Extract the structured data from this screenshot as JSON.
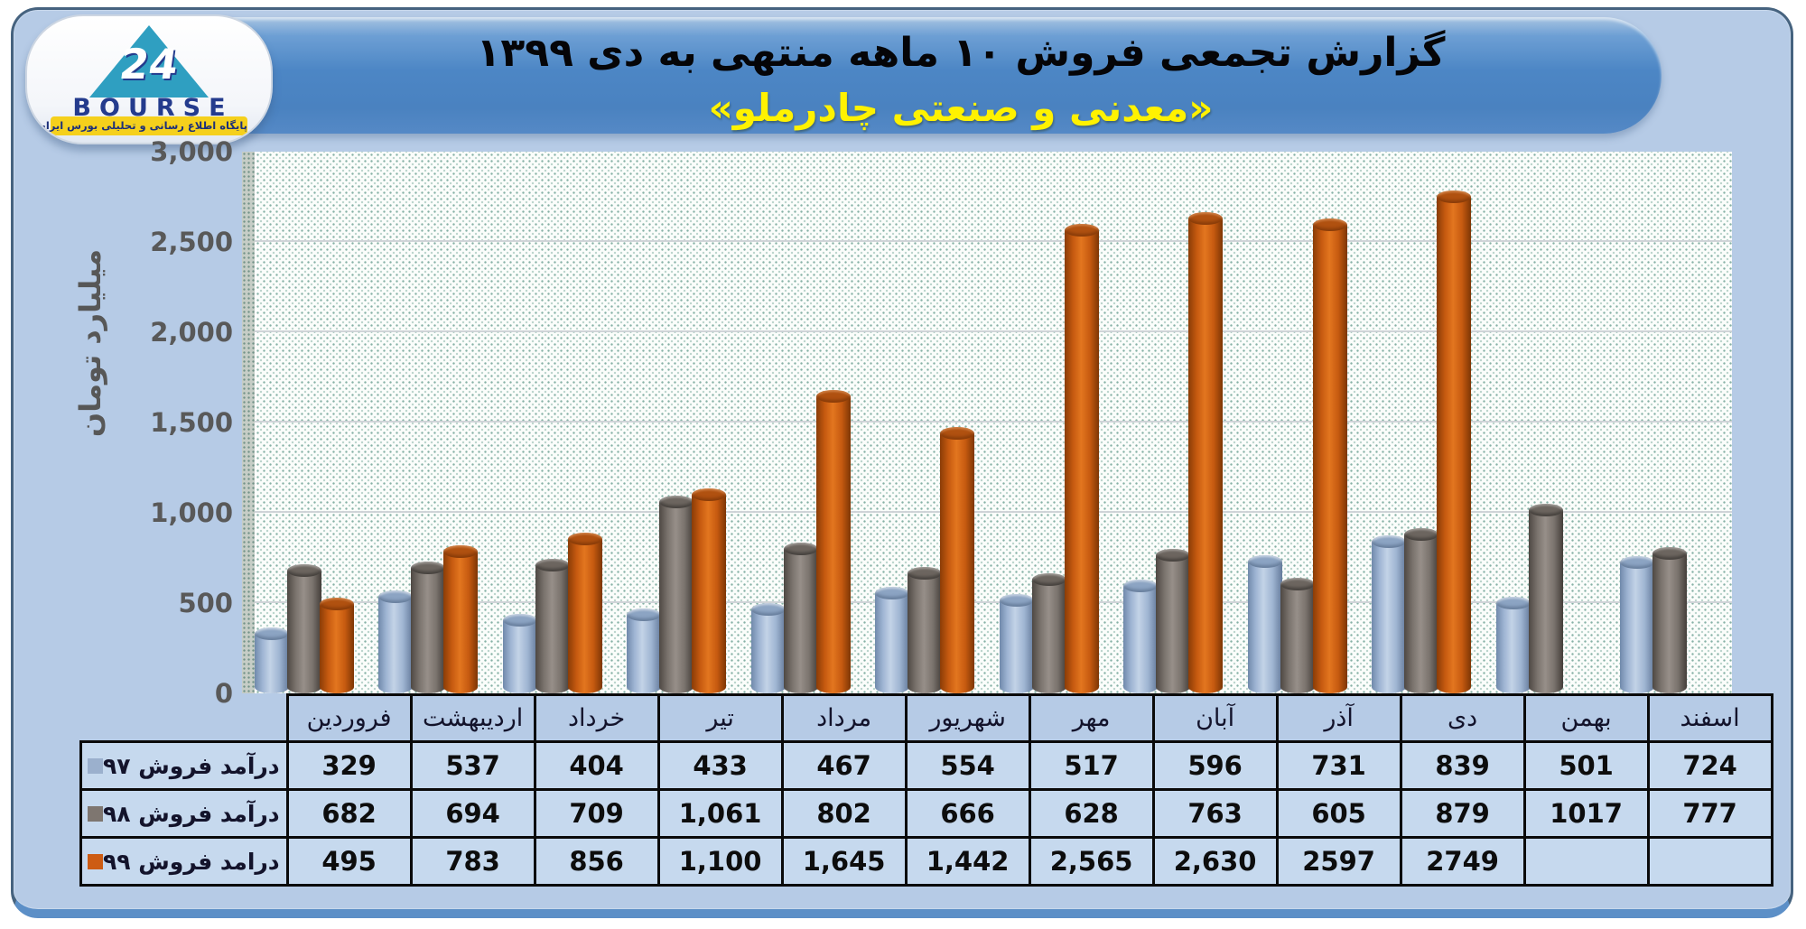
{
  "header": {
    "title": "گزارش تجمعی فروش ۱۰ ماهه منتهی به دی ۱۳۹۹",
    "subtitle": "«معدنی و صنعتی چادرملو»"
  },
  "logo": {
    "number": "24",
    "brand": "BOURSE",
    "tagline": "پایگاه اطلاع رسانی و تحلیلی بورس ایران"
  },
  "y_axis": {
    "title": "میلیارد تومان",
    "ticks": [
      "3,000",
      "2,500",
      "2,000",
      "1,500",
      "1,000",
      "500",
      "0"
    ],
    "max": 3000
  },
  "table": {
    "months": [
      "فروردین",
      "اردیبهشت",
      "خرداد",
      "تیر",
      "مرداد",
      "شهریور",
      "مهر",
      "آبان",
      "آذر",
      "دی",
      "بهمن",
      "اسفند"
    ],
    "rows": [
      {
        "label": "درآمد فروش ۹۷",
        "swatch_color": "#9bb0cd",
        "cells": [
          "329",
          "537",
          "404",
          "433",
          "467",
          "554",
          "517",
          "596",
          "731",
          "839",
          "501",
          "724"
        ]
      },
      {
        "label": "درآمد فروش ۹۸",
        "swatch_color": "#7e7670",
        "cells": [
          "682",
          "694",
          "709",
          "1,061",
          "802",
          "666",
          "628",
          "763",
          "605",
          "879",
          "1017",
          "777"
        ]
      },
      {
        "label": "درامد فروش ۹۹",
        "swatch_color": "#cd5c13",
        "cells": [
          "495",
          "783",
          "856",
          "1,100",
          "1,645",
          "1,442",
          "2,565",
          "2,630",
          "2597",
          "2749",
          "",
          ""
        ]
      }
    ]
  },
  "chart_data": {
    "type": "bar",
    "title": "گزارش تجمعی فروش ۱۰ ماهه منتهی به دی ۱۳۹۹ «معدنی و صنعتی چادرملو»",
    "categories": [
      "فروردین",
      "اردیبهشت",
      "خرداد",
      "تیر",
      "مرداد",
      "شهریور",
      "مهر",
      "آبان",
      "آذر",
      "دی",
      "بهمن",
      "اسفند"
    ],
    "series": [
      {
        "name": "درآمد فروش ۹۷",
        "color": "#9bb0cd",
        "values": [
          329,
          537,
          404,
          433,
          467,
          554,
          517,
          596,
          731,
          839,
          501,
          724
        ]
      },
      {
        "name": "درآمد فروش ۹۸",
        "color": "#7e7670",
        "values": [
          682,
          694,
          709,
          1061,
          802,
          666,
          628,
          763,
          605,
          879,
          1017,
          777
        ]
      },
      {
        "name": "درامد فروش ۹۹",
        "color": "#cd5c13",
        "values": [
          495,
          783,
          856,
          1100,
          1645,
          1442,
          2565,
          2630,
          2597,
          2749,
          null,
          null
        ]
      }
    ],
    "xlabel": "",
    "ylabel": "میلیارد تومان",
    "ylim": [
      0,
      3000
    ],
    "y_tick_step": 500,
    "grid": true,
    "bar_style": "3d-cylinder",
    "legend_position": "table-row-headers-left"
  }
}
